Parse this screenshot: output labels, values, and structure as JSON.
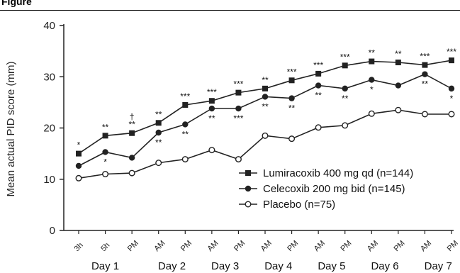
{
  "figure": {
    "label": "Figure"
  },
  "chart_data": {
    "type": "line",
    "title": "",
    "xlabel": "",
    "ylabel": "Mean actual PID score (mm)",
    "ylim": [
      0,
      40
    ],
    "yticks": [
      0,
      10,
      20,
      30,
      40
    ],
    "grid": false,
    "legend_position": "bottom-right",
    "x": [
      "3h",
      "5h",
      "PM",
      "AM",
      "PM",
      "AM",
      "PM",
      "AM",
      "PM",
      "AM",
      "PM",
      "AM",
      "PM",
      "AM",
      "PM"
    ],
    "day_groups": [
      {
        "label": "Day 1",
        "from": 0,
        "to": 2
      },
      {
        "label": "Day 2",
        "from": 3,
        "to": 4
      },
      {
        "label": "Day 3",
        "from": 5,
        "to": 6
      },
      {
        "label": "Day 4",
        "from": 7,
        "to": 8
      },
      {
        "label": "Day 5",
        "from": 9,
        "to": 10
      },
      {
        "label": "Day 6",
        "from": 11,
        "to": 12
      },
      {
        "label": "Day 7",
        "from": 13,
        "to": 14
      }
    ],
    "series": [
      {
        "name": "Lumiracoxib 400 mg qd (n=144)",
        "marker": "square-filled",
        "color": "#222222",
        "values": [
          15.0,
          18.5,
          19.0,
          21.0,
          24.5,
          25.3,
          26.9,
          27.7,
          29.3,
          30.6,
          32.2,
          33.0,
          32.8,
          32.3,
          33.2
        ],
        "annotations_above": [
          "*",
          "**",
          "**",
          "**",
          "***",
          "***",
          "***",
          "**",
          "***",
          "***",
          "***",
          "**",
          "**",
          "***",
          "***"
        ]
      },
      {
        "name": "Celecoxib 200 mg bid (n=145)",
        "marker": "circle-filled",
        "color": "#222222",
        "values": [
          12.6,
          15.3,
          14.2,
          19.1,
          20.7,
          23.8,
          23.8,
          26.1,
          25.8,
          28.3,
          27.7,
          29.4,
          28.3,
          30.5,
          27.7
        ],
        "annotations_below": [
          "",
          "*",
          "",
          "**",
          "**",
          "**",
          "***",
          "**",
          "**",
          "**",
          "**",
          "*",
          "",
          "**",
          "*"
        ]
      },
      {
        "name": "Placebo (n=75)",
        "marker": "circle-open",
        "color": "#222222",
        "values": [
          10.2,
          11.0,
          11.2,
          13.2,
          13.9,
          15.7,
          13.9,
          18.5,
          17.9,
          20.1,
          20.5,
          22.8,
          23.5,
          22.7,
          22.7
        ]
      }
    ],
    "extra_annotations": [
      {
        "index": 2,
        "text": "†"
      }
    ]
  }
}
